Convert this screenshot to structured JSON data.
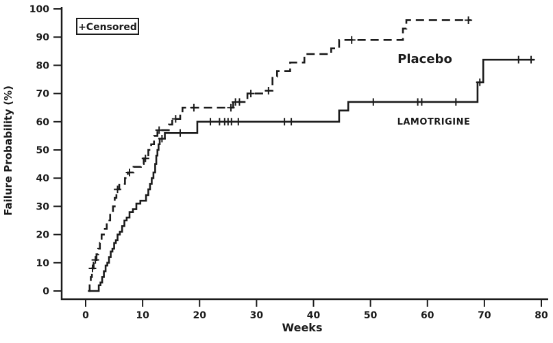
{
  "figure": {
    "background": "#ffffff",
    "ink": "#1b1b1b"
  },
  "legend": {
    "label": "+Censored"
  },
  "axes": {
    "x": {
      "label": "Weeks",
      "min": 0,
      "max": 80,
      "ticks": [
        0,
        10,
        20,
        30,
        40,
        50,
        60,
        70,
        80
      ]
    },
    "y": {
      "label": "Failure Probability (%)",
      "min": 0,
      "max": 100,
      "ticks": [
        0,
        10,
        20,
        30,
        40,
        50,
        60,
        70,
        80,
        90,
        100
      ]
    }
  },
  "chart_data": {
    "type": "line",
    "curve_style": "step-after",
    "title": "",
    "xlabel": "Weeks",
    "ylabel": "Failure Probability (%)",
    "xlim": [
      0,
      80
    ],
    "ylim": [
      0,
      100
    ],
    "grid": false,
    "legend_note": "+Censored (tick marks on curves indicate censored observations)",
    "series": [
      {
        "name": "Placebo",
        "line_style": "dashed",
        "end_week": 67.6,
        "steps": [
          [
            0.4,
            0
          ],
          [
            0.7,
            2
          ],
          [
            0.9,
            5
          ],
          [
            1.1,
            8
          ],
          [
            1.4,
            10
          ],
          [
            1.6,
            11
          ],
          [
            1.9,
            13
          ],
          [
            2.2,
            15
          ],
          [
            2.5,
            17
          ],
          [
            2.8,
            20
          ],
          [
            3.2,
            22
          ],
          [
            3.7,
            25
          ],
          [
            4.3,
            27
          ],
          [
            4.8,
            30
          ],
          [
            5.1,
            33
          ],
          [
            5.4,
            36
          ],
          [
            5.9,
            38
          ],
          [
            6.9,
            40
          ],
          [
            7.4,
            42
          ],
          [
            8.4,
            44
          ],
          [
            9.7,
            45
          ],
          [
            10.2,
            47
          ],
          [
            11.0,
            50
          ],
          [
            11.5,
            52
          ],
          [
            12.0,
            55
          ],
          [
            12.6,
            57
          ],
          [
            14.6,
            59
          ],
          [
            15.2,
            61
          ],
          [
            16.6,
            63
          ],
          [
            17.0,
            65
          ],
          [
            25.9,
            67
          ],
          [
            28.4,
            70
          ],
          [
            31.4,
            71
          ],
          [
            32.8,
            76
          ],
          [
            33.6,
            78
          ],
          [
            35.9,
            81
          ],
          [
            38.4,
            84
          ],
          [
            43.1,
            86
          ],
          [
            44.5,
            89
          ],
          [
            55.7,
            93
          ],
          [
            56.3,
            96
          ]
        ],
        "censored": [
          [
            1.2,
            8
          ],
          [
            1.7,
            11
          ],
          [
            5.6,
            36
          ],
          [
            7.7,
            42
          ],
          [
            10.5,
            47
          ],
          [
            12.9,
            57
          ],
          [
            15.8,
            61
          ],
          [
            19.0,
            65
          ],
          [
            25.5,
            65
          ],
          [
            26.3,
            67
          ],
          [
            27.0,
            67
          ],
          [
            29.0,
            70
          ],
          [
            32.1,
            71
          ],
          [
            46.7,
            89
          ],
          [
            67.2,
            96
          ]
        ]
      },
      {
        "name": "LAMOTRIGINE",
        "line_style": "solid",
        "end_week": 78.8,
        "steps": [
          [
            0.6,
            0
          ],
          [
            2.3,
            2
          ],
          [
            2.6,
            3
          ],
          [
            2.9,
            5
          ],
          [
            3.2,
            7
          ],
          [
            3.5,
            9
          ],
          [
            3.8,
            10
          ],
          [
            4.1,
            12
          ],
          [
            4.4,
            14
          ],
          [
            4.7,
            15
          ],
          [
            5.0,
            17
          ],
          [
            5.3,
            18
          ],
          [
            5.6,
            20
          ],
          [
            6.0,
            21
          ],
          [
            6.4,
            23
          ],
          [
            6.8,
            25
          ],
          [
            7.2,
            26
          ],
          [
            7.7,
            28
          ],
          [
            8.3,
            29
          ],
          [
            8.9,
            31
          ],
          [
            9.6,
            32
          ],
          [
            10.6,
            34
          ],
          [
            11.0,
            36
          ],
          [
            11.3,
            38
          ],
          [
            11.6,
            40
          ],
          [
            11.9,
            42
          ],
          [
            12.2,
            45
          ],
          [
            12.4,
            48
          ],
          [
            12.6,
            50
          ],
          [
            12.8,
            52
          ],
          [
            13.0,
            54
          ],
          [
            13.9,
            56
          ],
          [
            19.6,
            60
          ],
          [
            44.5,
            64
          ],
          [
            46.1,
            67
          ],
          [
            68.8,
            74
          ],
          [
            69.8,
            82
          ]
        ],
        "censored": [
          [
            13.4,
            54
          ],
          [
            16.6,
            56
          ],
          [
            21.9,
            60
          ],
          [
            23.5,
            60
          ],
          [
            24.4,
            60
          ],
          [
            25.0,
            60
          ],
          [
            25.6,
            60
          ],
          [
            26.8,
            60
          ],
          [
            34.9,
            60
          ],
          [
            36.1,
            60
          ],
          [
            50.5,
            67
          ],
          [
            58.3,
            67
          ],
          [
            59.0,
            67
          ],
          [
            65.0,
            67
          ],
          [
            69.2,
            74
          ],
          [
            76.0,
            82
          ],
          [
            78.2,
            82
          ]
        ]
      }
    ]
  }
}
